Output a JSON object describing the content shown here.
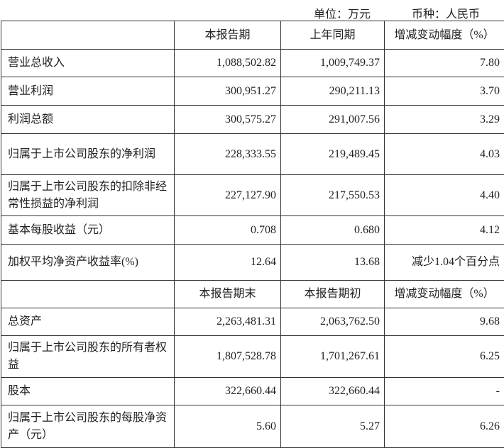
{
  "unit_label": "单位：万元",
  "currency_label": "币种：人民币",
  "section1": {
    "headers": [
      "",
      "本报告期",
      "上年同期",
      "增减变动幅度（%）"
    ],
    "rows": [
      [
        "营业总收入",
        "1,088,502.82",
        "1,009,749.37",
        "7.80"
      ],
      [
        "营业利润",
        "300,951.27",
        "290,211.13",
        "3.70"
      ],
      [
        "利润总额",
        "300,575.27",
        "291,007.56",
        "3.29"
      ],
      [
        "归属于上市公司股东的净利润",
        "228,333.55",
        "219,489.45",
        "4.03"
      ],
      [
        "归属于上市公司股东的扣除非经常性损益的净利润",
        "227,127.90",
        "217,550.53",
        "4.40"
      ],
      [
        "基本每股收益（元）",
        "0.708",
        "0.680",
        "4.12"
      ],
      [
        "加权平均净资产收益率(%)",
        "12.64",
        "13.68",
        "减少1.04个百分点"
      ]
    ]
  },
  "section2": {
    "headers": [
      "",
      "本报告期末",
      "本报告期初",
      "增减变动幅度（%）"
    ],
    "rows": [
      [
        "总资产",
        "2,263,481.31",
        "2,063,762.50",
        "9.68"
      ],
      [
        "归属于上市公司股东的所有者权益",
        "1,807,528.78",
        "1,701,267.61",
        "6.25"
      ],
      [
        "股本",
        "322,660.44",
        "322,660.44",
        "-"
      ],
      [
        "归属于上市公司股东的每股净资产（元）",
        "5.60",
        "5.27",
        "6.26"
      ]
    ]
  }
}
